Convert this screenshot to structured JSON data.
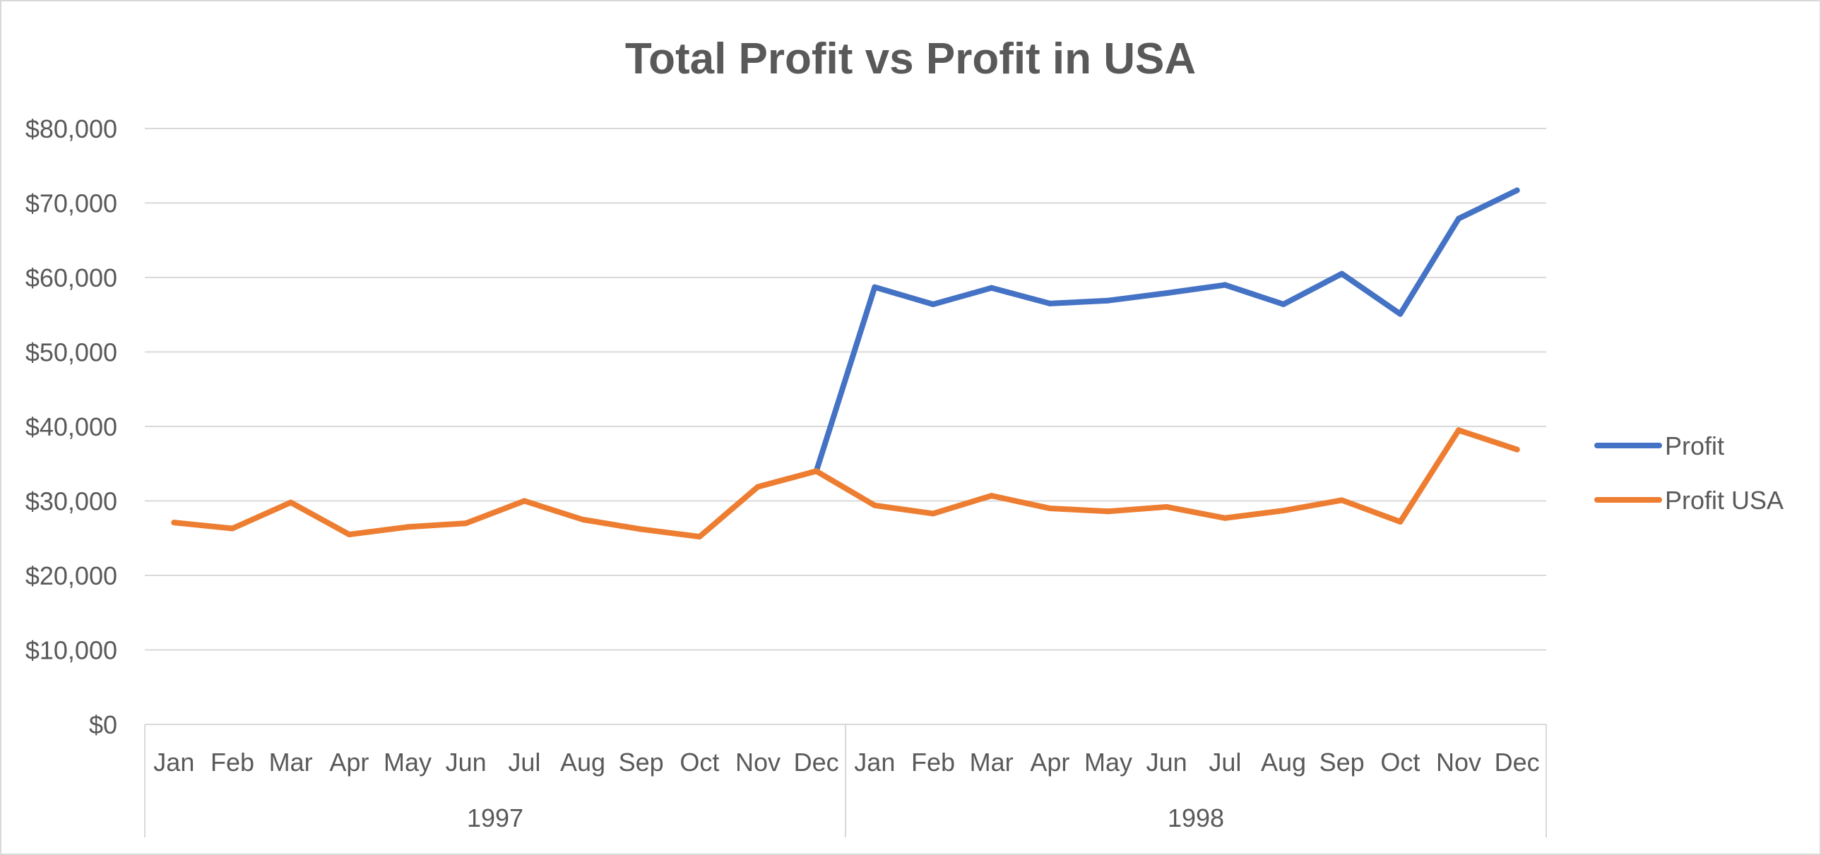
{
  "chart_data": {
    "type": "line",
    "title": "Total Profit vs Profit in USA",
    "xlabel": "",
    "ylabel": "",
    "ylim": [
      0,
      80000
    ],
    "y_ticks": [
      0,
      10000,
      20000,
      30000,
      40000,
      50000,
      60000,
      70000,
      80000
    ],
    "y_tick_labels": [
      "$0",
      "$10,000",
      "$20,000",
      "$30,000",
      "$40,000",
      "$50,000",
      "$60,000",
      "$70,000",
      "$80,000"
    ],
    "grid": true,
    "legend_position": "right",
    "groups": [
      {
        "label": "1997",
        "months": [
          "Jan",
          "Feb",
          "Mar",
          "Apr",
          "May",
          "Jun",
          "Jul",
          "Aug",
          "Sep",
          "Oct",
          "Nov",
          "Dec"
        ]
      },
      {
        "label": "1998",
        "months": [
          "Jan",
          "Feb",
          "Mar",
          "Apr",
          "May",
          "Jun",
          "Jul",
          "Aug",
          "Sep",
          "Oct",
          "Nov",
          "Dec"
        ]
      }
    ],
    "series": [
      {
        "name": "Profit",
        "color": "#4472C4",
        "values": [
          null,
          null,
          null,
          null,
          null,
          null,
          null,
          null,
          null,
          null,
          null,
          34000,
          58700,
          56400,
          58600,
          56500,
          56900,
          57900,
          59000,
          56400,
          60500,
          55100,
          67900,
          71700
        ]
      },
      {
        "name": "Profit USA",
        "color": "#ED7D31",
        "values": [
          27100,
          26300,
          29800,
          25500,
          26500,
          27000,
          30000,
          27500,
          26200,
          25200,
          31900,
          34000,
          29400,
          28300,
          30700,
          29000,
          28600,
          29200,
          27700,
          28700,
          30100,
          27200,
          39500,
          36900
        ]
      }
    ]
  }
}
